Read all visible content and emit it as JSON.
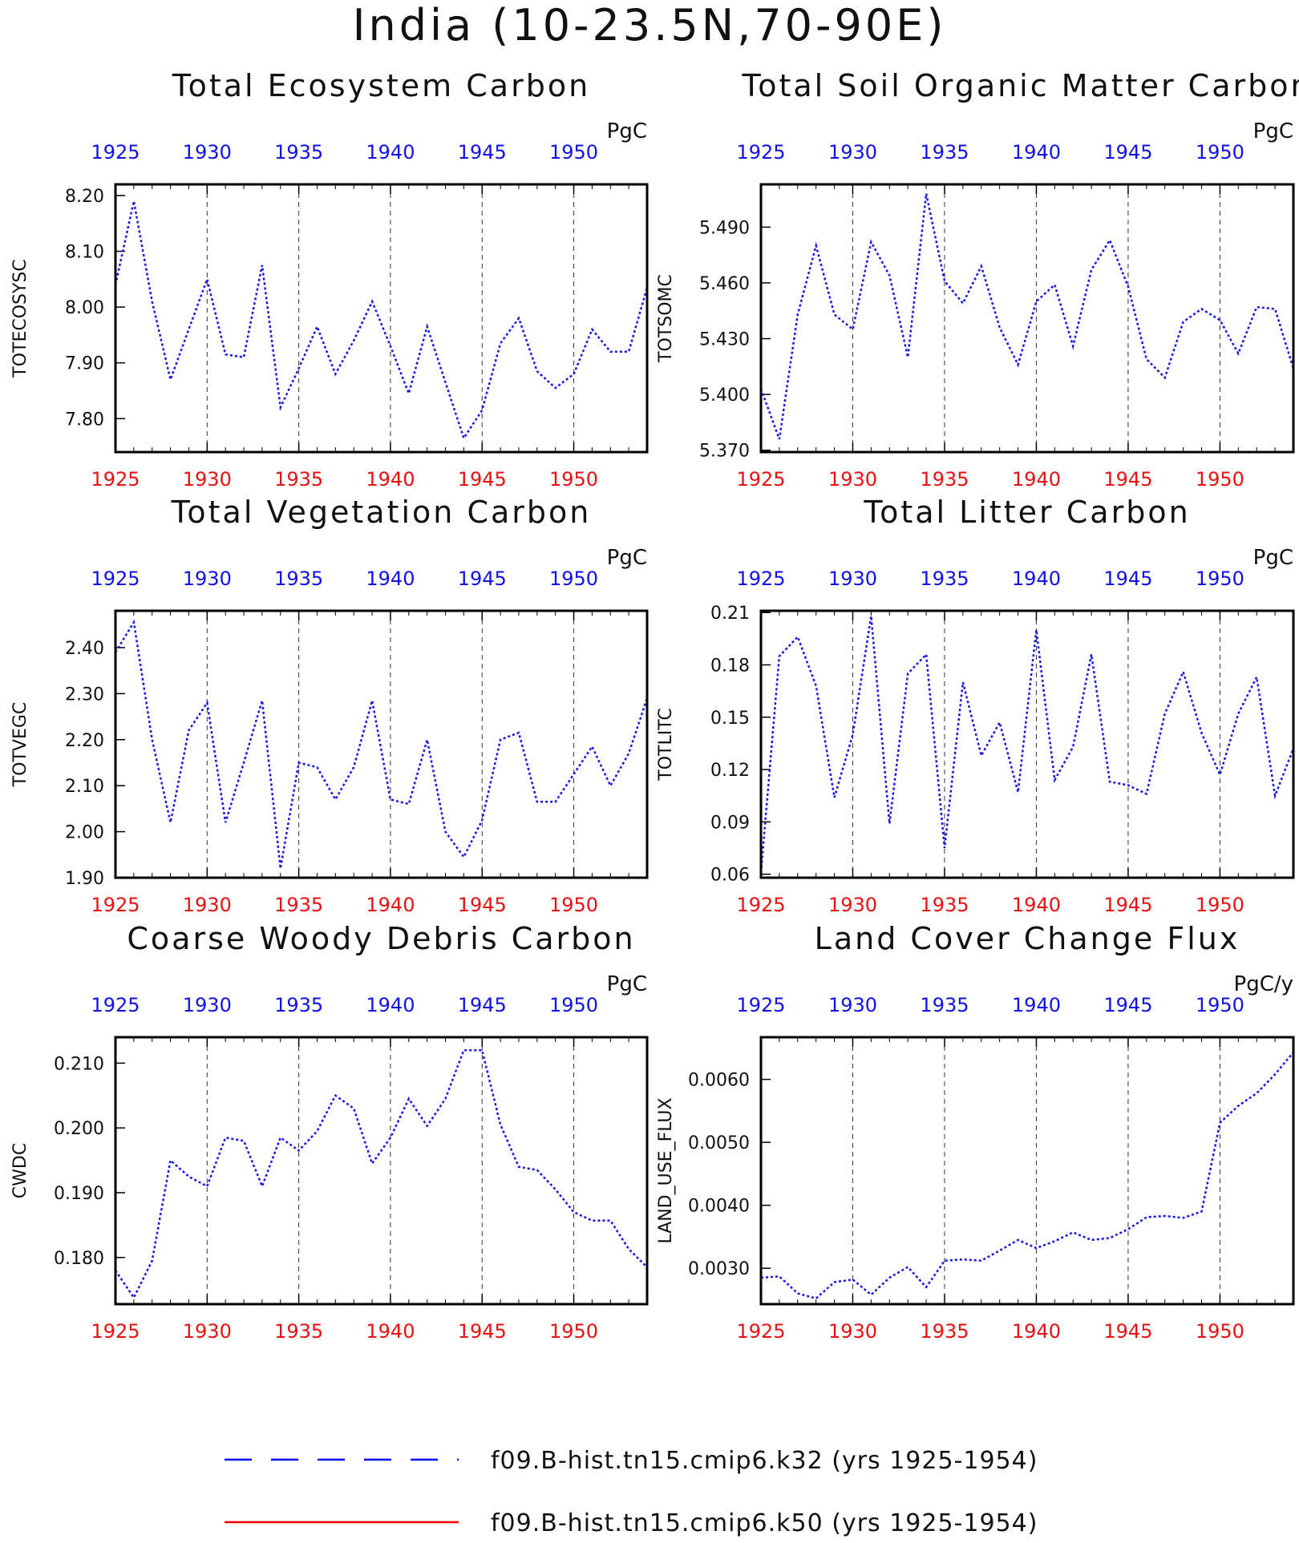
{
  "title": "India (10-23.5N,70-90E)",
  "legend": [
    {
      "label": "f09.B-hist.tn15.cmip6.k32 (yrs 1925-1954)",
      "color": "#0000ff",
      "dash": "long"
    },
    {
      "label": "f09.B-hist.tn15.cmip6.k50 (yrs 1925-1954)",
      "color": "#ff0000",
      "dash": "solid"
    }
  ],
  "colors": {
    "series": "#1515e6",
    "top_ticks": "#1010e8",
    "bottom_ticks": "#e81010"
  },
  "chart_data": [
    {
      "type": "line",
      "title": "Total Ecosystem Carbon",
      "units": "PgC",
      "ylabel": "TOTECOSYSC",
      "xlim": [
        1925,
        1954
      ],
      "ylim": [
        7.74,
        8.22
      ],
      "yticks": [
        7.8,
        7.9,
        8.0,
        8.1,
        8.2
      ],
      "ytick_labels": [
        "7.80",
        "7.90",
        "8.00",
        "8.10",
        "8.20"
      ],
      "xticks": [
        1925,
        1930,
        1935,
        1940,
        1945,
        1950
      ],
      "xtick_labels": [
        "1925",
        "1930",
        "1935",
        "1940",
        "1945",
        "1950"
      ],
      "x": [
        1925,
        1926,
        1927,
        1928,
        1929,
        1930,
        1931,
        1932,
        1933,
        1934,
        1935,
        1936,
        1937,
        1938,
        1939,
        1940,
        1941,
        1942,
        1943,
        1944,
        1945,
        1946,
        1947,
        1948,
        1949,
        1950,
        1951,
        1952,
        1953,
        1954
      ],
      "values": [
        8.04,
        8.19,
        8.01,
        7.87,
        7.96,
        8.05,
        7.915,
        7.91,
        8.075,
        7.82,
        7.89,
        7.965,
        7.88,
        7.94,
        8.01,
        7.93,
        7.845,
        7.965,
        7.865,
        7.765,
        7.815,
        7.935,
        7.98,
        7.885,
        7.855,
        7.88,
        7.96,
        7.92,
        7.92,
        8.035
      ]
    },
    {
      "type": "line",
      "title": "Total Soil Organic Matter Carbon",
      "units": "PgC",
      "ylabel": "TOTSOMC",
      "xlim": [
        1925,
        1954
      ],
      "ylim": [
        5.369,
        5.513
      ],
      "yticks": [
        5.37,
        5.4,
        5.43,
        5.46,
        5.49
      ],
      "ytick_labels": [
        "5.370",
        "5.400",
        "5.430",
        "5.460",
        "5.490"
      ],
      "xticks": [
        1925,
        1930,
        1935,
        1940,
        1945,
        1950
      ],
      "xtick_labels": [
        "1925",
        "1930",
        "1935",
        "1940",
        "1945",
        "1950"
      ],
      "x": [
        1925,
        1926,
        1927,
        1928,
        1929,
        1930,
        1931,
        1932,
        1933,
        1934,
        1935,
        1936,
        1937,
        1938,
        1939,
        1940,
        1941,
        1942,
        1943,
        1944,
        1945,
        1946,
        1947,
        1948,
        1949,
        1950,
        1951,
        1952,
        1953,
        1954
      ],
      "values": [
        5.403,
        5.376,
        5.443,
        5.48,
        5.443,
        5.435,
        5.482,
        5.464,
        5.42,
        5.508,
        5.461,
        5.449,
        5.469,
        5.436,
        5.416,
        5.45,
        5.459,
        5.426,
        5.467,
        5.483,
        5.458,
        5.419,
        5.409,
        5.439,
        5.446,
        5.44,
        5.422,
        5.447,
        5.446,
        5.414
      ]
    },
    {
      "type": "line",
      "title": "Total Vegetation Carbon",
      "units": "PgC",
      "ylabel": "TOTVEGC",
      "xlim": [
        1925,
        1954
      ],
      "ylim": [
        1.9,
        2.48
      ],
      "yticks": [
        1.9,
        2.0,
        2.1,
        2.2,
        2.3,
        2.4
      ],
      "ytick_labels": [
        "1.90",
        "2.00",
        "2.10",
        "2.20",
        "2.30",
        "2.40"
      ],
      "xticks": [
        1925,
        1930,
        1935,
        1940,
        1945,
        1950
      ],
      "xtick_labels": [
        "1925",
        "1930",
        "1935",
        "1940",
        "1945",
        "1950"
      ],
      "x": [
        1925,
        1926,
        1927,
        1928,
        1929,
        1930,
        1931,
        1932,
        1933,
        1934,
        1935,
        1936,
        1937,
        1938,
        1939,
        1940,
        1941,
        1942,
        1943,
        1944,
        1945,
        1946,
        1947,
        1948,
        1949,
        1950,
        1951,
        1952,
        1953,
        1954
      ],
      "values": [
        2.39,
        2.455,
        2.2,
        2.02,
        2.22,
        2.28,
        2.02,
        2.15,
        2.285,
        1.92,
        2.15,
        2.14,
        2.07,
        2.14,
        2.285,
        2.07,
        2.06,
        2.2,
        2.0,
        1.945,
        2.025,
        2.2,
        2.215,
        2.065,
        2.065,
        2.125,
        2.185,
        2.1,
        2.17,
        2.29
      ]
    },
    {
      "type": "line",
      "title": "Total Litter Carbon",
      "units": "PgC",
      "ylabel": "TOTLITC",
      "xlim": [
        1925,
        1954
      ],
      "ylim": [
        0.058,
        0.211
      ],
      "yticks": [
        0.06,
        0.09,
        0.12,
        0.15,
        0.18,
        0.21
      ],
      "ytick_labels": [
        "0.06",
        "0.09",
        "0.12",
        "0.15",
        "0.18",
        "0.21"
      ],
      "xticks": [
        1925,
        1930,
        1935,
        1940,
        1945,
        1950
      ],
      "xtick_labels": [
        "1925",
        "1930",
        "1935",
        "1940",
        "1945",
        "1950"
      ],
      "x": [
        1925,
        1926,
        1927,
        1928,
        1929,
        1930,
        1931,
        1932,
        1933,
        1934,
        1935,
        1936,
        1937,
        1938,
        1939,
        1940,
        1941,
        1942,
        1943,
        1944,
        1945,
        1946,
        1947,
        1948,
        1949,
        1950,
        1951,
        1952,
        1953,
        1954
      ],
      "values": [
        0.061,
        0.185,
        0.196,
        0.168,
        0.104,
        0.14,
        0.208,
        0.089,
        0.175,
        0.186,
        0.075,
        0.17,
        0.128,
        0.147,
        0.107,
        0.2,
        0.114,
        0.133,
        0.186,
        0.113,
        0.111,
        0.106,
        0.152,
        0.176,
        0.141,
        0.117,
        0.152,
        0.173,
        0.105,
        0.132
      ]
    },
    {
      "type": "line",
      "title": "Coarse Woody Debris Carbon",
      "units": "PgC",
      "ylabel": "CWDC",
      "xlim": [
        1925,
        1954
      ],
      "ylim": [
        0.1728,
        0.214
      ],
      "yticks": [
        0.18,
        0.19,
        0.2,
        0.21
      ],
      "ytick_labels": [
        "0.180",
        "0.190",
        "0.200",
        "0.210"
      ],
      "xticks": [
        1925,
        1930,
        1935,
        1940,
        1945,
        1950
      ],
      "xtick_labels": [
        "1925",
        "1930",
        "1935",
        "1940",
        "1945",
        "1950"
      ],
      "x": [
        1925,
        1926,
        1927,
        1928,
        1929,
        1930,
        1931,
        1932,
        1933,
        1934,
        1935,
        1936,
        1937,
        1938,
        1939,
        1940,
        1941,
        1942,
        1943,
        1944,
        1945,
        1946,
        1947,
        1948,
        1949,
        1950,
        1951,
        1952,
        1953,
        1954
      ],
      "values": [
        0.178,
        0.1738,
        0.1795,
        0.195,
        0.1925,
        0.191,
        0.1985,
        0.198,
        0.191,
        0.1985,
        0.1965,
        0.1995,
        0.205,
        0.203,
        0.1945,
        0.1985,
        0.2045,
        0.2003,
        0.2045,
        0.212,
        0.212,
        0.2005,
        0.194,
        0.1935,
        0.1905,
        0.187,
        0.1857,
        0.1857,
        0.1813,
        0.1785
      ]
    },
    {
      "type": "line",
      "title": "Land Cover Change Flux",
      "units": "PgC/y",
      "ylabel": "LAND_USE_FLUX",
      "xlim": [
        1925,
        1954
      ],
      "ylim": [
        0.00243,
        0.00667
      ],
      "yticks": [
        0.003,
        0.004,
        0.005,
        0.006
      ],
      "ytick_labels": [
        "0.0030",
        "0.0040",
        "0.0050",
        "0.0060"
      ],
      "xticks": [
        1925,
        1930,
        1935,
        1940,
        1945,
        1950
      ],
      "xtick_labels": [
        "1925",
        "1930",
        "1935",
        "1940",
        "1945",
        "1950"
      ],
      "x": [
        1925,
        1926,
        1927,
        1928,
        1929,
        1930,
        1931,
        1932,
        1933,
        1934,
        1935,
        1936,
        1937,
        1938,
        1939,
        1940,
        1941,
        1942,
        1943,
        1944,
        1945,
        1946,
        1947,
        1948,
        1949,
        1950,
        1951,
        1952,
        1953,
        1954
      ],
      "values": [
        0.00285,
        0.00287,
        0.0026,
        0.00252,
        0.00278,
        0.00282,
        0.00258,
        0.00285,
        0.00302,
        0.0027,
        0.00312,
        0.00314,
        0.00312,
        0.00328,
        0.00345,
        0.00332,
        0.00343,
        0.00357,
        0.00345,
        0.00348,
        0.00362,
        0.00381,
        0.00383,
        0.0038,
        0.0039,
        0.00531,
        0.00558,
        0.00578,
        0.00608,
        0.00643
      ]
    }
  ]
}
